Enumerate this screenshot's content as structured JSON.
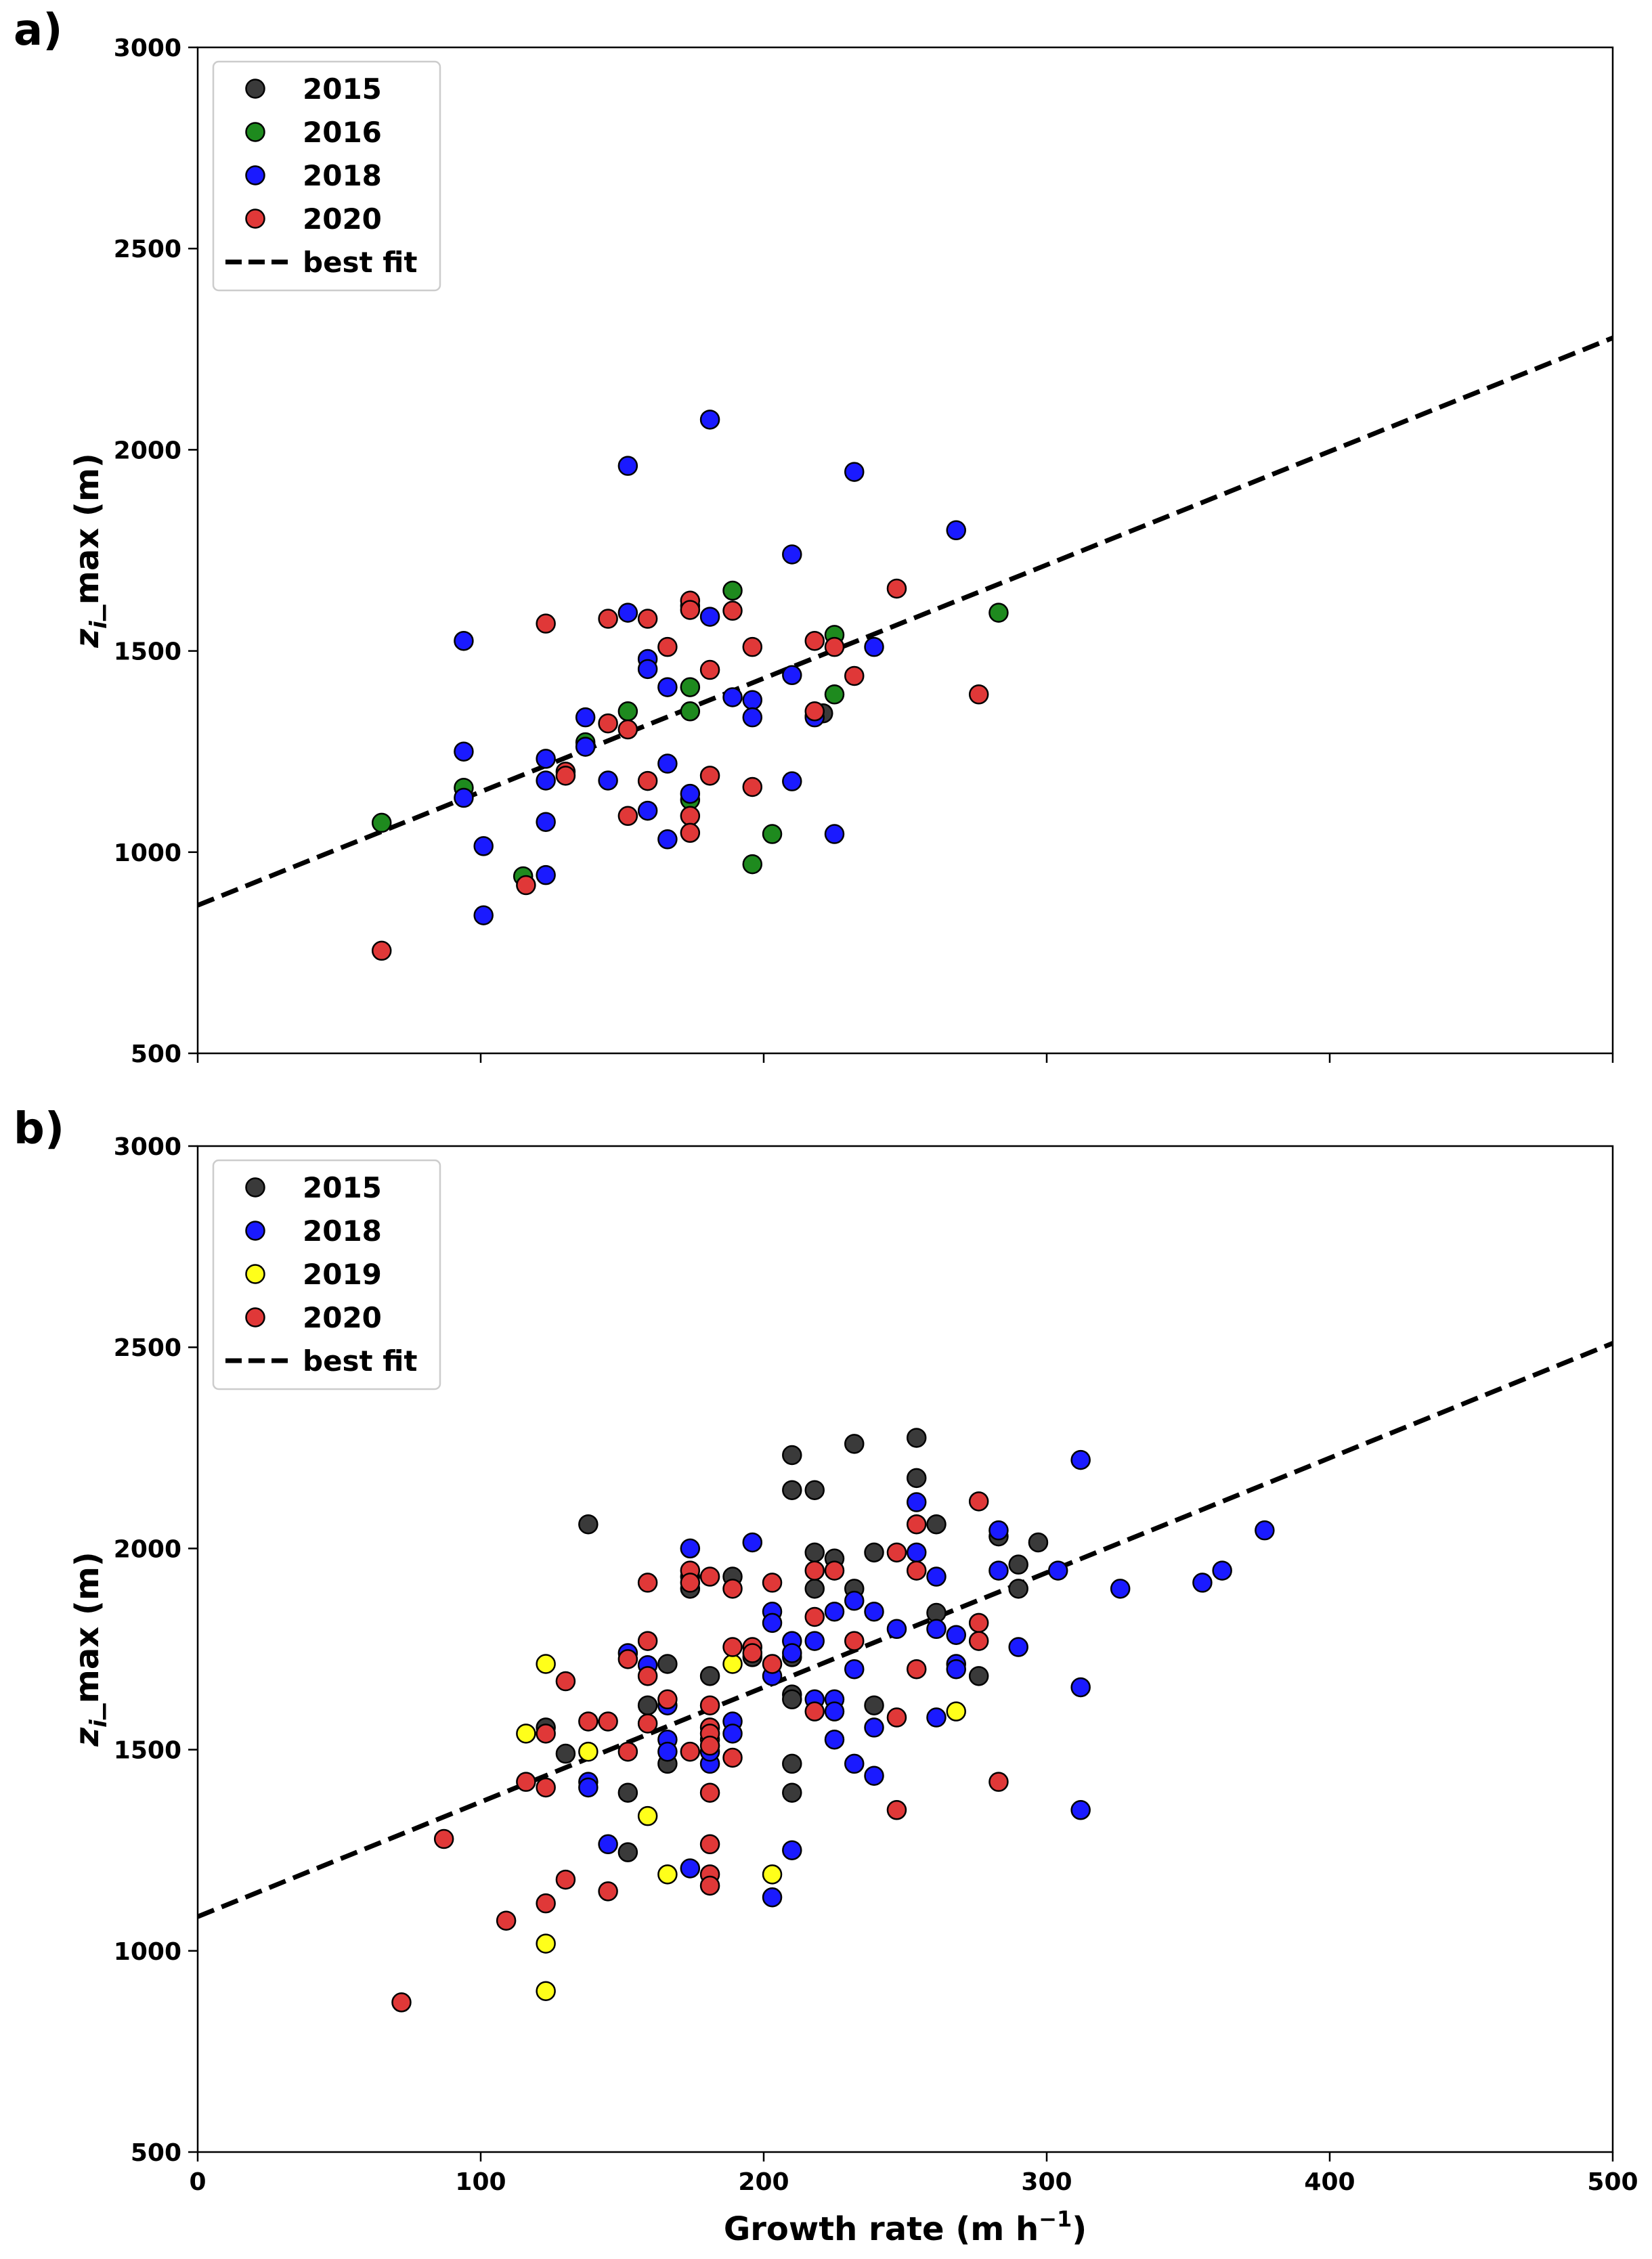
{
  "chart_data": [
    {
      "type": "scatter",
      "panel_label": "a)",
      "title": "",
      "xlabel": "",
      "ylabel": "z_i_max (m)",
      "ylabel_parts": {
        "main": "z",
        "sub": "i",
        "suffix": "_max (m)"
      },
      "xlim": [
        0,
        500
      ],
      "ylim": [
        500,
        3000
      ],
      "xticks": [
        0,
        100,
        200,
        300,
        400,
        500
      ],
      "xtick_labels_visible": false,
      "yticks": [
        500,
        1000,
        1500,
        2000,
        2500,
        3000
      ],
      "grid": false,
      "legend_position": "top-left",
      "best_fit": {
        "label": "best fit",
        "slope": 2.82,
        "intercept": 868,
        "x_range": [
          0,
          500
        ]
      },
      "series": [
        {
          "name": "2015",
          "color": "#3a3a3a",
          "points": [
            [
              218,
              1338
            ],
            [
              221,
              1345
            ]
          ]
        },
        {
          "name": "2016",
          "color": "#1e8a1e",
          "points": [
            [
              65,
              1073
            ],
            [
              94,
              1160
            ],
            [
              115,
              940
            ],
            [
              137,
              1273
            ],
            [
              152,
              1350
            ],
            [
              174,
              1410
            ],
            [
              174,
              1350
            ],
            [
              174,
              1130
            ],
            [
              189,
              1650
            ],
            [
              196,
              970
            ],
            [
              203,
              1045
            ],
            [
              225,
              1540
            ],
            [
              225,
              1392
            ],
            [
              283,
              1595
            ]
          ]
        },
        {
          "name": "2018",
          "color": "#1a1aff",
          "points": [
            [
              94,
              1525
            ],
            [
              94,
              1250
            ],
            [
              94,
              1135
            ],
            [
              101,
              1015
            ],
            [
              101,
              843
            ],
            [
              123,
              1232
            ],
            [
              123,
              1178
            ],
            [
              123,
              1075
            ],
            [
              123,
              943
            ],
            [
              137,
              1335
            ],
            [
              137,
              1262
            ],
            [
              145,
              1178
            ],
            [
              152,
              1960
            ],
            [
              152,
              1595
            ],
            [
              159,
              1480
            ],
            [
              159,
              1455
            ],
            [
              159,
              1103
            ],
            [
              166,
              1410
            ],
            [
              166,
              1220
            ],
            [
              166,
              1032
            ],
            [
              174,
              1612
            ],
            [
              174,
              1145
            ],
            [
              181,
              2075
            ],
            [
              181,
              1585
            ],
            [
              189,
              1385
            ],
            [
              196,
              1378
            ],
            [
              196,
              1335
            ],
            [
              210,
              1740
            ],
            [
              210,
              1440
            ],
            [
              210,
              1176
            ],
            [
              218,
              1335
            ],
            [
              225,
              1045
            ],
            [
              232,
              1945
            ],
            [
              239,
              1510
            ],
            [
              268,
              1800
            ]
          ]
        },
        {
          "name": "2020",
          "color": "#e03838",
          "points": [
            [
              65,
              755
            ],
            [
              116,
              918
            ],
            [
              123,
              1568
            ],
            [
              130,
              1200
            ],
            [
              130,
              1190
            ],
            [
              145,
              1580
            ],
            [
              145,
              1320
            ],
            [
              152,
              1305
            ],
            [
              152,
              1090
            ],
            [
              159,
              1580
            ],
            [
              159,
              1177
            ],
            [
              166,
              1510
            ],
            [
              174,
              1625
            ],
            [
              174,
              1602
            ],
            [
              174,
              1090
            ],
            [
              174,
              1048
            ],
            [
              181,
              1453
            ],
            [
              181,
              1190
            ],
            [
              189,
              1600
            ],
            [
              196,
              1510
            ],
            [
              196,
              1162
            ],
            [
              218,
              1525
            ],
            [
              218,
              1350
            ],
            [
              225,
              1510
            ],
            [
              232,
              1438
            ],
            [
              247,
              1655
            ],
            [
              276,
              1392
            ]
          ]
        }
      ]
    },
    {
      "type": "scatter",
      "panel_label": "b)",
      "title": "",
      "xlabel": "Growth rate (m h⁻¹)",
      "xlabel_parts": {
        "main": "Growth rate (m h",
        "sup": "−1",
        "suffix": ")"
      },
      "ylabel": "z_i_max (m)",
      "ylabel_parts": {
        "main": "z",
        "sub": "i",
        "suffix": "_max (m)"
      },
      "xlim": [
        0,
        500
      ],
      "ylim": [
        500,
        3000
      ],
      "xticks": [
        0,
        100,
        200,
        300,
        400,
        500
      ],
      "xtick_labels_visible": true,
      "yticks": [
        500,
        1000,
        1500,
        2000,
        2500,
        3000
      ],
      "grid": false,
      "legend_position": "top-left",
      "best_fit": {
        "label": "best fit",
        "slope": 2.85,
        "intercept": 1085,
        "x_range": [
          0,
          500
        ]
      },
      "series": [
        {
          "name": "2015",
          "color": "#3a3a3a",
          "points": [
            [
              123,
              1555
            ],
            [
              130,
              1490
            ],
            [
              138,
              2060
            ],
            [
              152,
              1393
            ],
            [
              152,
              1245
            ],
            [
              159,
              1610
            ],
            [
              166,
              1713
            ],
            [
              166,
              1465
            ],
            [
              174,
              1930
            ],
            [
              174,
              1900
            ],
            [
              181,
              1683
            ],
            [
              189,
              1930
            ],
            [
              196,
              1730
            ],
            [
              210,
              2232
            ],
            [
              210,
              2145
            ],
            [
              210,
              1730
            ],
            [
              210,
              1637
            ],
            [
              210,
              1625
            ],
            [
              210,
              1465
            ],
            [
              210,
              1393
            ],
            [
              218,
              2145
            ],
            [
              218,
              1990
            ],
            [
              218,
              1900
            ],
            [
              225,
              1975
            ],
            [
              232,
              2260
            ],
            [
              232,
              1900
            ],
            [
              239,
              1990
            ],
            [
              239,
              1610
            ],
            [
              254,
              2275
            ],
            [
              254,
              2175
            ],
            [
              261,
              2060
            ],
            [
              261,
              1840
            ],
            [
              276,
              1683
            ],
            [
              283,
              2030
            ],
            [
              290,
              1960
            ],
            [
              290,
              1900
            ],
            [
              297,
              2015
            ]
          ]
        },
        {
          "name": "2018",
          "color": "#1a1aff",
          "points": [
            [
              138,
              1420
            ],
            [
              138,
              1406
            ],
            [
              145,
              1265
            ],
            [
              152,
              1740
            ],
            [
              159,
              1710
            ],
            [
              166,
              1610
            ],
            [
              166,
              1525
            ],
            [
              166,
              1495
            ],
            [
              174,
              2000
            ],
            [
              174,
              1205
            ],
            [
              181,
              1465
            ],
            [
              181,
              1495
            ],
            [
              189,
              1570
            ],
            [
              189,
              1540
            ],
            [
              196,
              2015
            ],
            [
              203,
              1843
            ],
            [
              203,
              1815
            ],
            [
              203,
              1683
            ],
            [
              203,
              1133
            ],
            [
              210,
              1770
            ],
            [
              210,
              1740
            ],
            [
              210,
              1250
            ],
            [
              218,
              1770
            ],
            [
              218,
              1625
            ],
            [
              225,
              1843
            ],
            [
              225,
              1625
            ],
            [
              225,
              1595
            ],
            [
              225,
              1525
            ],
            [
              232,
              1870
            ],
            [
              232,
              1700
            ],
            [
              232,
              1465
            ],
            [
              239,
              1843
            ],
            [
              239,
              1555
            ],
            [
              239,
              1435
            ],
            [
              247,
              1800
            ],
            [
              254,
              2115
            ],
            [
              254,
              1990
            ],
            [
              261,
              1930
            ],
            [
              261,
              1800
            ],
            [
              261,
              1580
            ],
            [
              268,
              1785
            ],
            [
              268,
              1713
            ],
            [
              268,
              1700
            ],
            [
              283,
              2045
            ],
            [
              283,
              1945
            ],
            [
              290,
              1755
            ],
            [
              304,
              1945
            ],
            [
              312,
              2220
            ],
            [
              312,
              1655
            ],
            [
              312,
              1350
            ],
            [
              326,
              1900
            ],
            [
              355,
              1915
            ],
            [
              362,
              1945
            ],
            [
              377,
              2045
            ]
          ]
        },
        {
          "name": "2019",
          "color": "#ffff1a",
          "points": [
            [
              116,
              1540
            ],
            [
              123,
              1713
            ],
            [
              123,
              1018
            ],
            [
              123,
              900
            ],
            [
              138,
              1495
            ],
            [
              159,
              1335
            ],
            [
              166,
              1190
            ],
            [
              181,
              1525
            ],
            [
              189,
              1713
            ],
            [
              203,
              1190
            ],
            [
              268,
              1595
            ]
          ]
        },
        {
          "name": "2020",
          "color": "#e03838",
          "points": [
            [
              72,
              872
            ],
            [
              87,
              1278
            ],
            [
              109,
              1075
            ],
            [
              116,
              1420
            ],
            [
              123,
              1540
            ],
            [
              123,
              1406
            ],
            [
              123,
              1118
            ],
            [
              130,
              1670
            ],
            [
              130,
              1177
            ],
            [
              138,
              1570
            ],
            [
              145,
              1570
            ],
            [
              145,
              1148
            ],
            [
              152,
              1725
            ],
            [
              152,
              1495
            ],
            [
              159,
              1915
            ],
            [
              159,
              1770
            ],
            [
              159,
              1683
            ],
            [
              159,
              1565
            ],
            [
              166,
              1625
            ],
            [
              174,
              1945
            ],
            [
              174,
              1915
            ],
            [
              174,
              1495
            ],
            [
              181,
              1930
            ],
            [
              181,
              1610
            ],
            [
              181,
              1555
            ],
            [
              181,
              1540
            ],
            [
              181,
              1510
            ],
            [
              181,
              1393
            ],
            [
              181,
              1265
            ],
            [
              181,
              1190
            ],
            [
              181,
              1162
            ],
            [
              189,
              1900
            ],
            [
              189,
              1755
            ],
            [
              189,
              1480
            ],
            [
              196,
              1755
            ],
            [
              196,
              1740
            ],
            [
              203,
              1915
            ],
            [
              203,
              1713
            ],
            [
              218,
              1945
            ],
            [
              218,
              1830
            ],
            [
              218,
              1595
            ],
            [
              225,
              1945
            ],
            [
              232,
              1770
            ],
            [
              247,
              1990
            ],
            [
              247,
              1580
            ],
            [
              247,
              1350
            ],
            [
              254,
              2060
            ],
            [
              254,
              1945
            ],
            [
              254,
              1700
            ],
            [
              276,
              2117
            ],
            [
              276,
              1815
            ],
            [
              276,
              1770
            ],
            [
              283,
              1420
            ]
          ]
        }
      ]
    }
  ]
}
